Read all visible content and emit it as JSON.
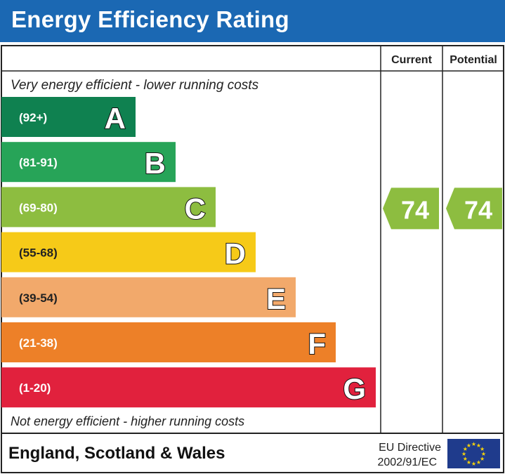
{
  "chart_data": {
    "type": "bar",
    "title": "Energy Efficiency Rating",
    "columns": [
      "Current",
      "Potential"
    ],
    "top_caption": "Very energy efficient - lower running costs",
    "bottom_caption": "Not energy efficient - higher running costs",
    "bands": [
      {
        "letter": "A",
        "range": "(92+)",
        "color": "#0f8150"
      },
      {
        "letter": "B",
        "range": "(81-91)",
        "color": "#27a458"
      },
      {
        "letter": "C",
        "range": "(69-80)",
        "color": "#8dbd40"
      },
      {
        "letter": "D",
        "range": "(55-68)",
        "color": "#f6ca18"
      },
      {
        "letter": "E",
        "range": "(39-54)",
        "color": "#f2a96b"
      },
      {
        "letter": "F",
        "range": "(21-38)",
        "color": "#ed8028"
      },
      {
        "letter": "G",
        "range": "(1-20)",
        "color": "#e1213d"
      }
    ],
    "current": {
      "value": 74,
      "band": "C",
      "color": "#8dbd40"
    },
    "potential": {
      "value": 74,
      "band": "C",
      "color": "#8dbd40"
    }
  },
  "footer": {
    "region": "England, Scotland & Wales",
    "directive_line1": "EU Directive",
    "directive_line2": "2002/91/EC",
    "flag_icon": "eu-flag-icon"
  },
  "colors": {
    "header": "#1b68b3",
    "flag": "#1f3b8c",
    "stars": "#f5d20a"
  }
}
